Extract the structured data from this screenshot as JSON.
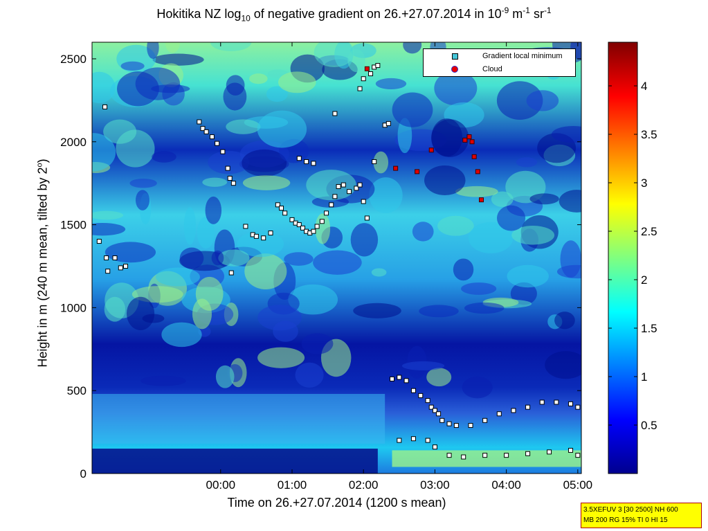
{
  "chart_data": {
    "type": "heatmap",
    "title_pre": "Hokitika NZ log",
    "title_sub": "10",
    "title_post": " of negative gradient on 26.+27.07.2014 in 10",
    "title_unit_exp1": "-9",
    "title_unit_mid": " m",
    "title_unit_exp2": "-1",
    "title_unit_mid2": " sr",
    "title_unit_exp3": "-1",
    "xlabel": "Time on 26.+27.07.2014 (1200 s mean)",
    "ylabel_pre": "Height in m (240 m mean, tilted by 2",
    "ylabel_sup": "o",
    "ylabel_post": ")",
    "x_ticks": [
      "00:00",
      "01:00",
      "02:00",
      "03:00",
      "04:00",
      "05:00"
    ],
    "x_tick_hours": [
      0,
      1,
      2,
      3,
      4,
      5
    ],
    "xlim_hours": [
      -1.8,
      5.05
    ],
    "y_ticks": [
      0,
      500,
      1000,
      1500,
      2000,
      2500
    ],
    "ylim": [
      0,
      2600
    ],
    "colorbar": {
      "ticks": [
        0.5,
        1,
        1.5,
        2,
        2.5,
        3,
        3.5,
        4
      ],
      "labels": [
        "0.5",
        "1",
        "1.5",
        "2",
        "2.5",
        "3",
        "3.5",
        "4"
      ],
      "range": [
        0,
        4.45
      ],
      "colormap": "jet"
    },
    "legend": {
      "position": "top-right",
      "entries": [
        {
          "label": "Gradient local minimum",
          "marker": "square",
          "color": "#45c6d8"
        },
        {
          "label": "Cloud",
          "marker": "circle",
          "color": "#e60000"
        }
      ]
    },
    "series": [
      {
        "name": "Gradient local minimum",
        "points": [
          [
            -1.7,
            1400
          ],
          [
            -1.62,
            2210
          ],
          [
            -1.6,
            1300
          ],
          [
            -1.58,
            1220
          ],
          [
            -1.48,
            1300
          ],
          [
            -1.4,
            1240
          ],
          [
            -1.33,
            1250
          ],
          [
            -0.3,
            2120
          ],
          [
            -0.25,
            2080
          ],
          [
            -0.2,
            2060
          ],
          [
            -0.12,
            2030
          ],
          [
            -0.05,
            1990
          ],
          [
            0.03,
            1940
          ],
          [
            0.1,
            1840
          ],
          [
            0.13,
            1780
          ],
          [
            0.18,
            1750
          ],
          [
            0.15,
            1210
          ],
          [
            0.35,
            1490
          ],
          [
            0.45,
            1440
          ],
          [
            0.5,
            1430
          ],
          [
            0.6,
            1420
          ],
          [
            0.7,
            1450
          ],
          [
            0.8,
            1620
          ],
          [
            0.85,
            1600
          ],
          [
            0.9,
            1570
          ],
          [
            1.0,
            1530
          ],
          [
            1.05,
            1510
          ],
          [
            1.1,
            1500
          ],
          [
            1.15,
            1480
          ],
          [
            1.2,
            1460
          ],
          [
            1.25,
            1450
          ],
          [
            1.3,
            1460
          ],
          [
            1.35,
            1490
          ],
          [
            1.42,
            1520
          ],
          [
            1.48,
            1570
          ],
          [
            1.55,
            1620
          ],
          [
            1.6,
            1670
          ],
          [
            1.65,
            1730
          ],
          [
            1.72,
            1740
          ],
          [
            1.8,
            1700
          ],
          [
            1.9,
            1720
          ],
          [
            1.95,
            1740
          ],
          [
            2.0,
            1640
          ],
          [
            2.05,
            1540
          ],
          [
            2.15,
            1880
          ],
          [
            2.0,
            2380
          ],
          [
            2.1,
            2410
          ],
          [
            2.15,
            2450
          ],
          [
            2.2,
            2460
          ],
          [
            1.1,
            1900
          ],
          [
            1.2,
            1880
          ],
          [
            1.3,
            1870
          ],
          [
            1.6,
            2170
          ],
          [
            1.95,
            2320
          ],
          [
            2.3,
            2100
          ],
          [
            2.35,
            2110
          ],
          [
            2.4,
            570
          ],
          [
            2.5,
            580
          ],
          [
            2.6,
            560
          ],
          [
            2.7,
            500
          ],
          [
            2.8,
            470
          ],
          [
            2.9,
            440
          ],
          [
            2.95,
            400
          ],
          [
            3.0,
            380
          ],
          [
            3.05,
            360
          ],
          [
            3.1,
            320
          ],
          [
            3.2,
            300
          ],
          [
            3.3,
            290
          ],
          [
            3.5,
            290
          ],
          [
            3.7,
            320
          ],
          [
            3.9,
            360
          ],
          [
            4.1,
            380
          ],
          [
            4.3,
            400
          ],
          [
            4.5,
            430
          ],
          [
            4.7,
            430
          ],
          [
            4.9,
            420
          ],
          [
            5.0,
            400
          ],
          [
            2.5,
            200
          ],
          [
            2.7,
            210
          ],
          [
            2.9,
            200
          ],
          [
            3.0,
            160
          ],
          [
            3.2,
            110
          ],
          [
            3.4,
            100
          ],
          [
            3.7,
            110
          ],
          [
            4.0,
            110
          ],
          [
            4.3,
            120
          ],
          [
            4.6,
            130
          ],
          [
            4.9,
            140
          ],
          [
            5.0,
            110
          ]
        ]
      },
      {
        "name": "Cloud",
        "points": [
          [
            2.05,
            2440
          ],
          [
            2.45,
            1840
          ],
          [
            2.75,
            1820
          ],
          [
            2.95,
            1950
          ],
          [
            3.42,
            2010
          ],
          [
            3.48,
            2030
          ],
          [
            3.52,
            2000
          ],
          [
            3.55,
            1910
          ],
          [
            3.6,
            1820
          ],
          [
            3.65,
            1650
          ]
        ]
      }
    ]
  },
  "info_box": {
    "line1": "3.5XEFUV 3 [30 2500] NH 600",
    "line2": "MB 200 RG 15% TI 0 HI 15"
  }
}
